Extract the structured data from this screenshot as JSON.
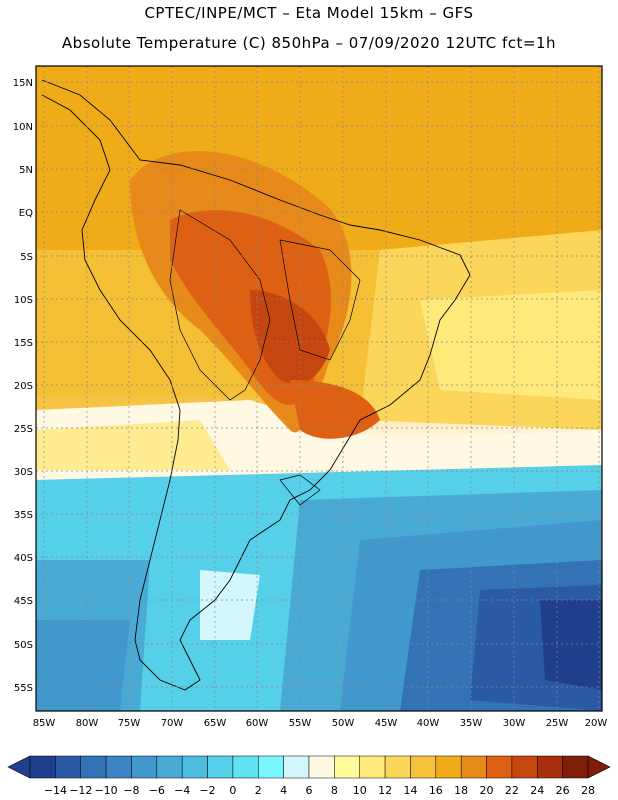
{
  "title": {
    "line1": "CPTEC/INPE/MCT –  Eta Model 15km – GFS",
    "line2": "Absolute Temperature (C) 850hPa – 07/09/2020 12UTC fct=1h"
  },
  "axes": {
    "lat_labels": [
      "15N",
      "10N",
      "5N",
      "EQ",
      "5S",
      "10S",
      "15S",
      "20S",
      "25S",
      "30S",
      "35S",
      "40S",
      "45S",
      "50S",
      "55S"
    ],
    "lon_labels": [
      "85W",
      "80W",
      "75W",
      "70W",
      "65W",
      "60W",
      "55W",
      "50W",
      "45W",
      "40W",
      "35W",
      "30W",
      "25W",
      "20W"
    ]
  },
  "colorbar": {
    "labels": [
      "-14",
      "-12",
      "-10",
      "-8",
      "-6",
      "-4",
      "-2",
      "0",
      "2",
      "4",
      "6",
      "8",
      "10",
      "12",
      "14",
      "16",
      "18",
      "20",
      "22",
      "24",
      "26",
      "28"
    ],
    "colors": [
      "#1f3e8c",
      "#2a5aa5",
      "#3373b5",
      "#3b86c2",
      "#4198cc",
      "#48aad5",
      "#4fbddf",
      "#56cfe8",
      "#5fe2f2",
      "#7af6ff",
      "#d3f7fc",
      "#fff8e3",
      "#fffa9b",
      "#ffe97a",
      "#fbd65a",
      "#f5c13a",
      "#f0ab18",
      "#e88a1a",
      "#de6113",
      "#c64610",
      "#a92e0c",
      "#7f1f0a"
    ]
  }
}
